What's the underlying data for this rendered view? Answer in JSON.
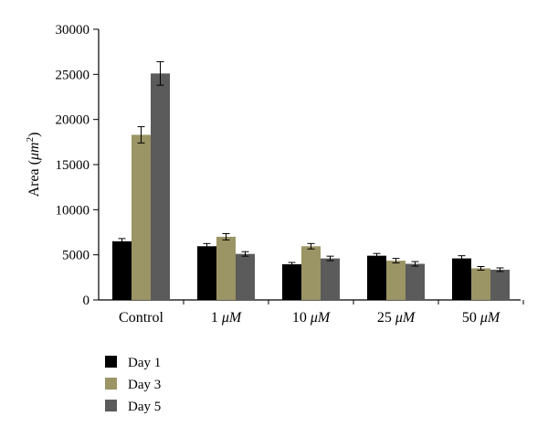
{
  "chart_data": {
    "type": "bar",
    "title": "",
    "xlabel": "",
    "ylabel": "Area (μm²)",
    "ylabel_parts": {
      "main": "Area (",
      "unit": "μm",
      "sup": "2",
      "close": ")"
    },
    "ylim": [
      0,
      30000
    ],
    "yticks": [
      0,
      5000,
      10000,
      15000,
      20000,
      25000,
      30000
    ],
    "ytick_labels": [
      "0",
      "5000",
      "10000",
      "15000",
      "20000",
      "25000",
      "30000"
    ],
    "grid": false,
    "legend_position": "bottom-left",
    "categories": [
      "Control",
      "1 μM",
      "10 μM",
      "25 μM",
      "50 μM"
    ],
    "category_parts": [
      {
        "num": "Control",
        "unit": ""
      },
      {
        "num": "1 ",
        "unit": "μM"
      },
      {
        "num": "10 ",
        "unit": "μM"
      },
      {
        "num": "25 ",
        "unit": "μM"
      },
      {
        "num": "50 ",
        "unit": "μM"
      }
    ],
    "series": [
      {
        "name": "Day 1",
        "color": "#000000",
        "values": [
          6500,
          5950,
          3950,
          4900,
          4600
        ],
        "errors": [
          300,
          300,
          200,
          250,
          300
        ]
      },
      {
        "name": "Day 3",
        "color": "#9b9464",
        "values": [
          18300,
          7000,
          5950,
          4350,
          3500
        ],
        "errors": [
          900,
          350,
          300,
          250,
          200
        ]
      },
      {
        "name": "Day 5",
        "color": "#5b5b5b",
        "values": [
          25100,
          5100,
          4600,
          4000,
          3350
        ],
        "errors": [
          1300,
          250,
          250,
          250,
          200
        ]
      }
    ]
  }
}
